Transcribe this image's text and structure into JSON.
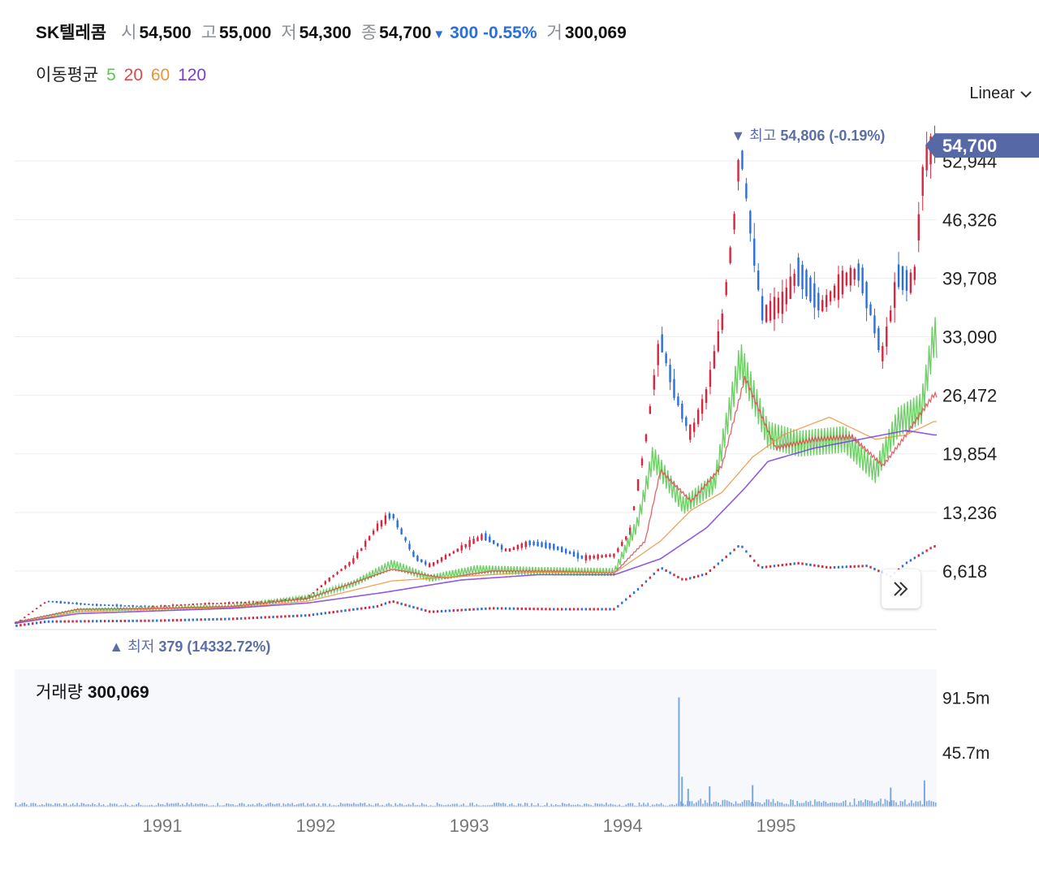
{
  "header": {
    "name": "SK텔레콤",
    "open_label": "시",
    "open": "54,500",
    "high_label": "고",
    "high": "55,000",
    "low_label": "저",
    "low": "54,300",
    "close_label": "종",
    "close": "54,700",
    "change_arrow": "▼",
    "change": "300 -0.55%",
    "volume_label": "거",
    "volume": "300,069"
  },
  "ma_legend": {
    "label": "이동평균",
    "periods": [
      "5",
      "20",
      "60",
      "120"
    ]
  },
  "scale_selector": {
    "label": "Linear",
    "icon": "chevron-down-icon"
  },
  "colors": {
    "up": "#d7263d",
    "down": "#2a6fdb",
    "ma5": "#57c84d",
    "ma20": "#e0474c",
    "ma60": "#f0913a",
    "ma120": "#7a3ce0",
    "price_badge": "#5669a6",
    "annotation": "#5b6ea8",
    "volume": "#7aa7e0"
  },
  "chart_data": {
    "type": "candlestick",
    "x_ticks": [
      "1991",
      "1992",
      "1993",
      "1994",
      "1995"
    ],
    "y_ticks": [
      "52,944",
      "46,326",
      "39,708",
      "33,090",
      "26,472",
      "19,854",
      "13,236",
      "6,618"
    ],
    "y_tick_values": [
      52944,
      46326,
      39708,
      33090,
      26472,
      19854,
      13236,
      6618
    ],
    "ylim": [
      0,
      54806
    ],
    "current_price_label": "54,700",
    "current_price": 54700,
    "high_annotation": {
      "arrow": "▼",
      "label": "최고",
      "value": "54,806 (-0.19%)",
      "price": 54806,
      "year": 1994.79
    },
    "low_annotation": {
      "arrow": "▲",
      "label": "최저",
      "value": "379 (14332.72%)",
      "price": 379,
      "year": 1990.6
    },
    "x_range": [
      1990.09,
      1996.1
    ],
    "price_path": [
      [
        1990.09,
        600
      ],
      [
        1990.3,
        3200
      ],
      [
        1990.6,
        2800
      ],
      [
        1991.0,
        2600
      ],
      [
        1991.3,
        2900
      ],
      [
        1991.7,
        3100
      ],
      [
        1992.0,
        3600
      ],
      [
        1992.15,
        5800
      ],
      [
        1992.3,
        7800
      ],
      [
        1992.45,
        11500
      ],
      [
        1992.55,
        13100
      ],
      [
        1992.7,
        8200
      ],
      [
        1992.8,
        7200
      ],
      [
        1993.0,
        9200
      ],
      [
        1993.15,
        10600
      ],
      [
        1993.3,
        8900
      ],
      [
        1993.45,
        9800
      ],
      [
        1993.6,
        9400
      ],
      [
        1993.8,
        8100
      ],
      [
        1994.0,
        8400
      ],
      [
        1994.1,
        11000
      ],
      [
        1994.2,
        21000
      ],
      [
        1994.3,
        33000
      ],
      [
        1994.4,
        26500
      ],
      [
        1994.5,
        22000
      ],
      [
        1994.6,
        26500
      ],
      [
        1994.7,
        34500
      ],
      [
        1994.78,
        46000
      ],
      [
        1994.82,
        54806
      ],
      [
        1994.9,
        44000
      ],
      [
        1994.97,
        35500
      ],
      [
        1995.1,
        37000
      ],
      [
        1995.2,
        40500
      ],
      [
        1995.35,
        36500
      ],
      [
        1995.5,
        39500
      ],
      [
        1995.6,
        40500
      ],
      [
        1995.75,
        31000
      ],
      [
        1995.85,
        40000
      ],
      [
        1995.95,
        39000
      ],
      [
        1996.02,
        52944
      ],
      [
        1996.08,
        54700
      ]
    ],
    "ma5_path": [
      [
        1990.09,
        800
      ],
      [
        1990.5,
        2200
      ],
      [
        1991.0,
        2400
      ],
      [
        1991.5,
        2600
      ],
      [
        1992.0,
        3600
      ],
      [
        1992.3,
        5200
      ],
      [
        1992.55,
        7400
      ],
      [
        1992.8,
        5800
      ],
      [
        1993.1,
        6800
      ],
      [
        1993.5,
        6600
      ],
      [
        1994.0,
        6500
      ],
      [
        1994.15,
        12000
      ],
      [
        1994.25,
        19500
      ],
      [
        1994.45,
        14000
      ],
      [
        1994.65,
        16500
      ],
      [
        1994.82,
        30500
      ],
      [
        1995.0,
        22000
      ],
      [
        1995.2,
        21000
      ],
      [
        1995.5,
        21500
      ],
      [
        1995.7,
        17800
      ],
      [
        1995.85,
        23500
      ],
      [
        1996.0,
        25000
      ],
      [
        1996.08,
        33000
      ]
    ],
    "ma20_path": [
      [
        1990.09,
        800
      ],
      [
        1990.5,
        2300
      ],
      [
        1991.0,
        2400
      ],
      [
        1991.5,
        2600
      ],
      [
        1992.0,
        3500
      ],
      [
        1992.55,
        6800
      ],
      [
        1992.9,
        5800
      ],
      [
        1993.2,
        6600
      ],
      [
        1993.6,
        6600
      ],
      [
        1994.0,
        6400
      ],
      [
        1994.2,
        10000
      ],
      [
        1994.3,
        18000
      ],
      [
        1994.5,
        14500
      ],
      [
        1994.7,
        18500
      ],
      [
        1994.85,
        28500
      ],
      [
        1995.05,
        20500
      ],
      [
        1995.3,
        21500
      ],
      [
        1995.55,
        21800
      ],
      [
        1995.75,
        18500
      ],
      [
        1995.9,
        22000
      ],
      [
        1996.08,
        26500
      ]
    ],
    "ma60_path": [
      [
        1990.09,
        700
      ],
      [
        1990.5,
        2000
      ],
      [
        1991.0,
        2300
      ],
      [
        1991.5,
        2500
      ],
      [
        1992.0,
        3200
      ],
      [
        1992.55,
        5500
      ],
      [
        1993.0,
        6000
      ],
      [
        1993.5,
        6500
      ],
      [
        1994.0,
        6400
      ],
      [
        1994.3,
        10000
      ],
      [
        1994.5,
        13500
      ],
      [
        1994.7,
        15500
      ],
      [
        1994.9,
        19500
      ],
      [
        1995.1,
        22000
      ],
      [
        1995.4,
        24000
      ],
      [
        1995.7,
        21500
      ],
      [
        1995.9,
        22000
      ],
      [
        1996.08,
        23500
      ]
    ],
    "ma120_path": [
      [
        1990.09,
        700
      ],
      [
        1990.5,
        1800
      ],
      [
        1991.0,
        2100
      ],
      [
        1991.5,
        2400
      ],
      [
        1992.0,
        3000
      ],
      [
        1992.5,
        4200
      ],
      [
        1993.0,
        5600
      ],
      [
        1993.5,
        6200
      ],
      [
        1994.0,
        6200
      ],
      [
        1994.3,
        8000
      ],
      [
        1994.6,
        11500
      ],
      [
        1994.85,
        16000
      ],
      [
        1995.0,
        19000
      ],
      [
        1995.3,
        20500
      ],
      [
        1995.6,
        21500
      ],
      [
        1995.9,
        22500
      ],
      [
        1996.08,
        22000
      ]
    ],
    "secondary_path": [
      [
        1990.09,
        400
      ],
      [
        1990.3,
        900
      ],
      [
        1991.0,
        1000
      ],
      [
        1991.5,
        1200
      ],
      [
        1992.0,
        1600
      ],
      [
        1992.45,
        2600
      ],
      [
        1992.55,
        3200
      ],
      [
        1992.8,
        2000
      ],
      [
        1993.2,
        2400
      ],
      [
        1993.6,
        2300
      ],
      [
        1994.0,
        2300
      ],
      [
        1994.15,
        4500
      ],
      [
        1994.3,
        7000
      ],
      [
        1994.45,
        5600
      ],
      [
        1994.6,
        6300
      ],
      [
        1994.82,
        9600
      ],
      [
        1994.95,
        7000
      ],
      [
        1995.2,
        7500
      ],
      [
        1995.4,
        7000
      ],
      [
        1995.65,
        7200
      ],
      [
        1995.8,
        6000
      ],
      [
        1995.9,
        7500
      ],
      [
        1996.08,
        9400
      ]
    ],
    "volume": {
      "title_label": "거래량",
      "title_value": "300,069",
      "y_ticks": [
        "91.5m",
        "45.7m"
      ],
      "y_tick_values": [
        91500000,
        45700000
      ],
      "ylim": [
        0,
        115000000
      ],
      "spikes": [
        [
          1994.42,
          91500000
        ],
        [
          1994.44,
          25000000
        ],
        [
          1994.48,
          15000000
        ],
        [
          1994.62,
          17000000
        ],
        [
          1994.9,
          18000000
        ],
        [
          1995.8,
          16000000
        ],
        [
          1996.02,
          22000000
        ]
      ]
    }
  }
}
